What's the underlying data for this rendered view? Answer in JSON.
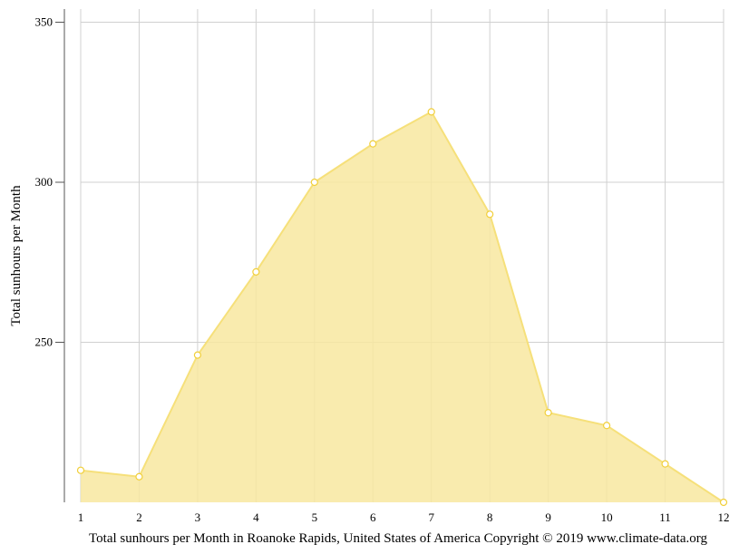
{
  "chart_data": {
    "type": "area",
    "ylabel": "Total sunhours per Month",
    "caption": "Total sunhours per Month in Roanoke Rapids, United States of America Copyright © 2019 www.climate-data.org",
    "x": [
      1,
      2,
      3,
      4,
      5,
      6,
      7,
      8,
      9,
      10,
      11,
      12
    ],
    "values": [
      210,
      208,
      246,
      272,
      300,
      312,
      322,
      290,
      228,
      224,
      212,
      200
    ],
    "xlim": [
      1,
      12
    ],
    "ylim": [
      200,
      355
    ],
    "yticks": [
      250,
      300,
      350
    ],
    "grid": true,
    "colors": {
      "fill": "#f8e8a0",
      "line": "#f6e07a",
      "marker_fill": "#ffffff",
      "marker_stroke": "#f1cf3a",
      "grid": "#d0d0d0",
      "axis": "#555555"
    }
  }
}
